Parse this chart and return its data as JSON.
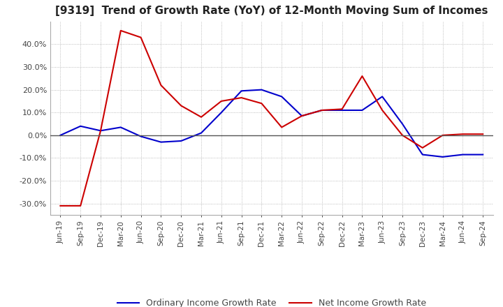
{
  "title": "[9319]  Trend of Growth Rate (YoY) of 12-Month Moving Sum of Incomes",
  "title_fontsize": 11,
  "ylim": [
    -35,
    50
  ],
  "yticks": [
    -30,
    -20,
    -10,
    0,
    10,
    20,
    30,
    40
  ],
  "ytick_labels": [
    "-30.0%",
    "-20.0%",
    "-10.0%",
    "0.0%",
    "10.0%",
    "20.0%",
    "30.0%",
    "40.0%"
  ],
  "xtick_labels": [
    "Jun-19",
    "Sep-19",
    "Dec-19",
    "Mar-20",
    "Jun-20",
    "Sep-20",
    "Dec-20",
    "Mar-21",
    "Jun-21",
    "Sep-21",
    "Dec-21",
    "Mar-22",
    "Jun-22",
    "Sep-22",
    "Dec-22",
    "Mar-23",
    "Jun-23",
    "Sep-23",
    "Dec-23",
    "Mar-24",
    "Jun-24",
    "Sep-24"
  ],
  "ordinary_income": [
    0.0,
    4.0,
    2.0,
    3.5,
    -0.5,
    -3.0,
    -2.5,
    1.0,
    10.0,
    19.5,
    20.0,
    17.0,
    8.5,
    11.0,
    11.0,
    11.0,
    17.0,
    5.0,
    -8.5,
    -9.5,
    -8.5,
    -8.5
  ],
  "net_income": [
    -31.0,
    -31.0,
    2.0,
    46.0,
    43.0,
    22.0,
    13.0,
    8.0,
    15.0,
    16.5,
    14.0,
    3.5,
    8.5,
    11.0,
    11.5,
    26.0,
    11.0,
    0.0,
    -5.5,
    0.0,
    0.5,
    0.5
  ],
  "ordinary_color": "#0000cc",
  "net_color": "#cc0000",
  "bg_color": "#ffffff",
  "plot_bg_color": "#ffffff",
  "grid_color": "#aaaaaa",
  "legend_labels": [
    "Ordinary Income Growth Rate",
    "Net Income Growth Rate"
  ]
}
